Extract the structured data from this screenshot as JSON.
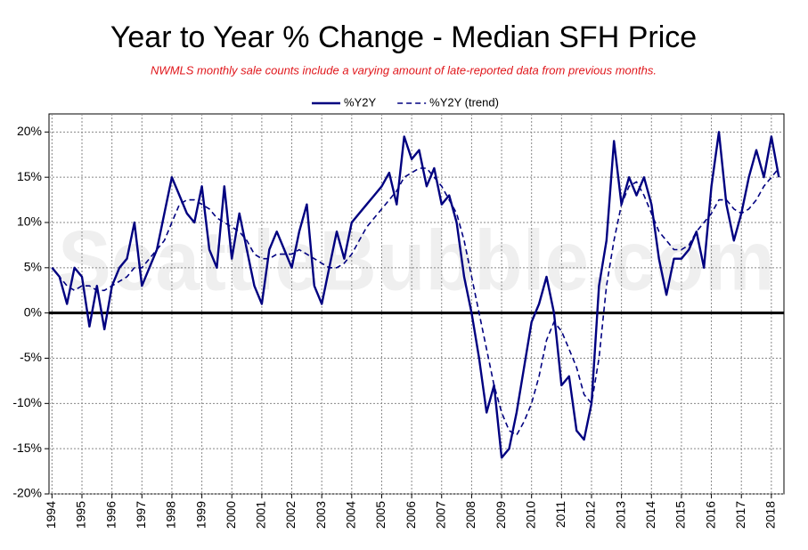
{
  "chart_data": {
    "type": "line",
    "title": "Year to Year % Change - Median SFH Price",
    "subtitle": "NWMLS monthly sale counts include a varying amount of late-reported data from previous months.",
    "watermark": "SeattleBubble.com",
    "x": [
      1994,
      1994.25,
      1994.5,
      1994.75,
      1995,
      1995.25,
      1995.5,
      1995.75,
      1996,
      1996.25,
      1996.5,
      1996.75,
      1997,
      1997.25,
      1997.5,
      1997.75,
      1998,
      1998.25,
      1998.5,
      1998.75,
      1999,
      1999.25,
      1999.5,
      1999.75,
      2000,
      2000.25,
      2000.5,
      2000.75,
      2001,
      2001.25,
      2001.5,
      2001.75,
      2002,
      2002.25,
      2002.5,
      2002.75,
      2003,
      2003.25,
      2003.5,
      2003.75,
      2004,
      2004.25,
      2004.5,
      2004.75,
      2005,
      2005.25,
      2005.5,
      2005.75,
      2006,
      2006.25,
      2006.5,
      2006.75,
      2007,
      2007.25,
      2007.5,
      2007.75,
      2008,
      2008.25,
      2008.5,
      2008.75,
      2009,
      2009.25,
      2009.5,
      2009.75,
      2010,
      2010.25,
      2010.5,
      2010.75,
      2011,
      2011.25,
      2011.5,
      2011.75,
      2012,
      2012.25,
      2012.5,
      2012.75,
      2013,
      2013.25,
      2013.5,
      2013.75,
      2014,
      2014.25,
      2014.5,
      2014.75,
      2015,
      2015.25,
      2015.5,
      2015.75,
      2016,
      2016.25,
      2016.5,
      2016.75,
      2017,
      2017.25,
      2017.5,
      2017.75,
      2018,
      2018.25
    ],
    "series": [
      {
        "name": "%Y2Y",
        "color": "#000080",
        "dash": false,
        "values": [
          5,
          4,
          1,
          5,
          4,
          -1.5,
          3,
          -1.8,
          3,
          5,
          6,
          10,
          3,
          5,
          7,
          11,
          15,
          13,
          11,
          10,
          14,
          7,
          5,
          14,
          6,
          11,
          7,
          3,
          1,
          7,
          9,
          7,
          5,
          9,
          12,
          3,
          1,
          5,
          9,
          6,
          10,
          11,
          12,
          13,
          14,
          15.5,
          12,
          19.5,
          17,
          18,
          14,
          16,
          12,
          13,
          10,
          4,
          0,
          -5,
          -11,
          -8,
          -16,
          -15,
          -11,
          -6,
          -1,
          1,
          4,
          0,
          -8,
          -7,
          -13,
          -14,
          -10,
          3,
          8,
          19,
          12,
          15,
          13,
          15,
          12,
          6,
          2,
          6,
          6,
          7,
          9,
          5,
          14,
          20,
          12,
          8,
          11,
          15,
          18,
          15,
          19.5,
          15
        ]
      },
      {
        "name": "%Y2Y (trend)",
        "color": "#000080",
        "dash": true,
        "values": [
          5,
          4,
          3,
          2.5,
          3,
          3,
          2.5,
          2.5,
          3,
          3.5,
          4,
          5,
          5,
          6,
          7,
          8,
          10,
          12,
          12.5,
          12.5,
          12,
          11.5,
          10.5,
          10,
          9.5,
          9,
          8,
          6.5,
          6,
          6,
          6.5,
          6.5,
          6.5,
          7,
          6.5,
          6,
          5.5,
          5,
          5,
          5.5,
          6.5,
          8,
          9.5,
          10.5,
          11.5,
          12.5,
          13.5,
          15,
          15.5,
          16,
          16,
          15,
          14,
          12.5,
          11,
          8,
          4,
          0,
          -4,
          -8,
          -11,
          -13,
          -13.5,
          -12,
          -10,
          -7,
          -3,
          -1,
          -2,
          -4,
          -6,
          -9,
          -10,
          -5,
          3,
          8,
          12,
          14,
          14.5,
          13,
          11,
          9,
          8,
          7,
          7,
          7.5,
          9,
          10,
          11,
          12.5,
          12.5,
          11.5,
          11,
          11.5,
          12.5,
          14,
          15,
          16
        ]
      }
    ],
    "xlim": [
      1993.9,
      2018.42
    ],
    "xticks": [
      1994,
      1995,
      1996,
      1997,
      1998,
      1999,
      2000,
      2001,
      2002,
      2003,
      2004,
      2005,
      2006,
      2007,
      2008,
      2009,
      2010,
      2011,
      2012,
      2013,
      2014,
      2015,
      2016,
      2017,
      2018
    ],
    "ylim": [
      -20,
      22
    ],
    "yticks": [
      {
        "value": -20,
        "label": "-20%"
      },
      {
        "value": -15,
        "label": "-15%"
      },
      {
        "value": -10,
        "label": "-10%"
      },
      {
        "value": -5,
        "label": "-5%"
      },
      {
        "value": 0,
        "label": "0%"
      },
      {
        "value": 5,
        "label": "5%"
      },
      {
        "value": 10,
        "label": "10%"
      },
      {
        "value": 15,
        "label": "15%"
      },
      {
        "value": 20,
        "label": "20%"
      }
    ],
    "baseline": 0,
    "grid": true
  }
}
